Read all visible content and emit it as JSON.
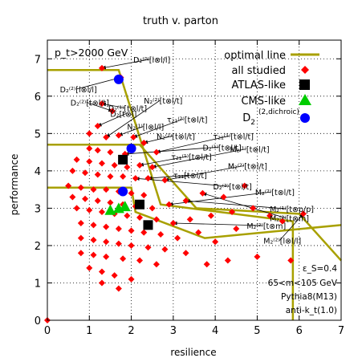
{
  "chart_data": {
    "type": "scatter",
    "title": "truth v. parton",
    "xlabel": "resilience",
    "ylabel": "performance",
    "xlim": [
      0,
      7
    ],
    "ylim": [
      0,
      7.5
    ],
    "xticks": [
      "0",
      "1",
      "2",
      "3",
      "4",
      "5",
      "6",
      "7"
    ],
    "yticks": [
      "0",
      "1",
      "2",
      "3",
      "4",
      "5",
      "6",
      "7"
    ],
    "grid": true,
    "legend_position": "top-right",
    "pt_label": "p_t>2000 GeV",
    "info_lines": [
      "ε_S=0.4",
      "65<m<105 GeV",
      "Pythia8(M13)",
      "anti-k_t(1.0)"
    ],
    "colors": {
      "optimal": "#a8a000",
      "all": "#ff0000",
      "atlas": "#000000",
      "cms": "#00cc00",
      "d2": "#0000ff"
    },
    "series": [
      {
        "name": "all studied",
        "marker": "diamond",
        "points": [
          [
            0,
            0
          ],
          [
            1.3,
            6.75
          ],
          [
            1.75,
            6.5
          ],
          [
            1.3,
            5.8
          ],
          [
            1.55,
            5.6
          ],
          [
            1.2,
            5.2
          ],
          [
            1.0,
            5.0
          ],
          [
            1.4,
            4.9
          ],
          [
            1.7,
            4.95
          ],
          [
            2.05,
            4.9
          ],
          [
            2.3,
            4.75
          ],
          [
            1.0,
            4.6
          ],
          [
            1.2,
            4.55
          ],
          [
            1.5,
            4.5
          ],
          [
            1.85,
            4.45
          ],
          [
            2.6,
            4.5
          ],
          [
            0.7,
            4.3
          ],
          [
            1.0,
            4.25
          ],
          [
            1.3,
            4.2
          ],
          [
            1.6,
            4.15
          ],
          [
            1.9,
            4.1
          ],
          [
            2.2,
            4.15
          ],
          [
            2.5,
            4.1
          ],
          [
            0.6,
            4.0
          ],
          [
            0.9,
            3.95
          ],
          [
            1.2,
            3.9
          ],
          [
            1.5,
            3.85
          ],
          [
            1.8,
            3.85
          ],
          [
            2.1,
            3.8
          ],
          [
            2.4,
            3.8
          ],
          [
            2.8,
            3.75
          ],
          [
            0.5,
            3.6
          ],
          [
            0.8,
            3.55
          ],
          [
            1.1,
            3.5
          ],
          [
            1.4,
            3.5
          ],
          [
            1.7,
            3.45
          ],
          [
            2.0,
            3.4
          ],
          [
            2.3,
            3.35
          ],
          [
            0.6,
            3.3
          ],
          [
            0.9,
            3.25
          ],
          [
            1.2,
            3.2
          ],
          [
            1.5,
            3.15
          ],
          [
            1.8,
            3.1
          ],
          [
            2.1,
            3.05
          ],
          [
            2.5,
            3.0
          ],
          [
            2.9,
            3.1
          ],
          [
            3.3,
            3.2
          ],
          [
            3.7,
            3.4
          ],
          [
            4.2,
            3.3
          ],
          [
            4.7,
            3.6
          ],
          [
            0.7,
            3.0
          ],
          [
            1.0,
            2.95
          ],
          [
            1.3,
            2.9
          ],
          [
            1.6,
            2.85
          ],
          [
            1.9,
            2.8
          ],
          [
            2.2,
            2.75
          ],
          [
            2.6,
            2.7
          ],
          [
            3.0,
            2.6
          ],
          [
            3.4,
            2.7
          ],
          [
            3.9,
            2.8
          ],
          [
            4.4,
            2.9
          ],
          [
            4.9,
            3.0
          ],
          [
            5.3,
            2.8
          ],
          [
            5.6,
            2.65
          ],
          [
            6.1,
            2.85
          ],
          [
            0.8,
            2.6
          ],
          [
            1.1,
            2.55
          ],
          [
            1.4,
            2.5
          ],
          [
            1.7,
            2.45
          ],
          [
            2.0,
            2.4
          ],
          [
            2.3,
            2.35
          ],
          [
            2.7,
            2.3
          ],
          [
            3.1,
            2.2
          ],
          [
            3.6,
            2.35
          ],
          [
            4.0,
            2.1
          ],
          [
            4.5,
            2.45
          ],
          [
            0.8,
            2.2
          ],
          [
            1.1,
            2.15
          ],
          [
            1.4,
            2.1
          ],
          [
            1.7,
            2.05
          ],
          [
            2.0,
            2.0
          ],
          [
            2.4,
            1.95
          ],
          [
            2.8,
            1.9
          ],
          [
            3.3,
            1.8
          ],
          [
            0.8,
            1.8
          ],
          [
            1.1,
            1.75
          ],
          [
            1.4,
            1.7
          ],
          [
            1.8,
            1.65
          ],
          [
            2.2,
            1.6
          ],
          [
            2.6,
            1.5
          ],
          [
            1.0,
            1.4
          ],
          [
            1.3,
            1.3
          ],
          [
            1.6,
            1.2
          ],
          [
            2.0,
            1.1
          ],
          [
            1.3,
            1.0
          ],
          [
            1.7,
            0.85
          ],
          [
            3.8,
            1.5
          ],
          [
            4.3,
            1.6
          ],
          [
            5.0,
            1.7
          ],
          [
            5.8,
            1.6
          ]
        ]
      },
      {
        "name": "ATLAS-like",
        "marker": "square",
        "points": [
          [
            1.8,
            4.3
          ],
          [
            2.2,
            3.1
          ],
          [
            2.4,
            2.55
          ]
        ]
      },
      {
        "name": "CMS-like",
        "marker": "triangle",
        "points": [
          [
            1.5,
            2.95
          ],
          [
            1.7,
            3.0
          ],
          [
            1.85,
            3.05
          ]
        ]
      },
      {
        "name": "D_2^(2,dichroic)",
        "marker": "circle",
        "points": [
          [
            1.7,
            6.45
          ],
          [
            2.0,
            4.6
          ],
          [
            1.8,
            3.45
          ]
        ]
      }
    ],
    "optimal_lines": [
      {
        "name": "optimal line",
        "points": [
          [
            0,
            6.7
          ],
          [
            1.7,
            6.7
          ],
          [
            2.7,
            3.1
          ],
          [
            5.85,
            2.65
          ],
          [
            5.85,
            0
          ]
        ]
      },
      {
        "name": "optimal line",
        "points": [
          [
            0,
            4.7
          ],
          [
            2.2,
            4.7
          ],
          [
            3.55,
            3.0
          ],
          [
            6.0,
            2.85
          ],
          [
            7,
            1.6
          ]
        ]
      },
      {
        "name": "optimal line",
        "points": [
          [
            0,
            3.55
          ],
          [
            2.0,
            3.55
          ],
          [
            2.1,
            2.9
          ],
          [
            3.75,
            2.2
          ],
          [
            7,
            2.55
          ]
        ]
      }
    ],
    "annotations": [
      {
        "text": "D₂⁽²⁾[l⊗l/l]",
        "at": [
          2.05,
          6.9
        ],
        "tip": [
          1.3,
          6.75
        ]
      },
      {
        "text": "D₂⁽²⁾[l⊗l/l]",
        "at": [
          0.3,
          6.1
        ],
        "tip": [
          1.75,
          6.5
        ]
      },
      {
        "text": "D₂⁽²⁾[t⊗l/t]",
        "at": [
          0.55,
          5.75
        ],
        "tip": [
          1.55,
          5.6
        ]
      },
      {
        "text": "D₂⁽¹⁾[t⊗l/t]",
        "at": [
          1.45,
          5.6
        ],
        "tip": [
          1.3,
          5.8
        ]
      },
      {
        "text": "D₂[t⊗l]",
        "at": [
          1.5,
          5.45
        ],
        "tip": [
          1.2,
          5.2
        ]
      },
      {
        "text": "N₂⁽²⁾[t⊗l/t]",
        "at": [
          2.3,
          5.8
        ],
        "tip": [
          1.4,
          4.9
        ]
      },
      {
        "text": "N₂⁽¹⁾[l⊗l/l]",
        "at": [
          1.9,
          5.1
        ],
        "tip": [
          1.7,
          4.95
        ]
      },
      {
        "text": "τ₂₁⁽²⁾[t⊗l/t]",
        "at": [
          2.85,
          5.3
        ],
        "tip": [
          2.05,
          4.9
        ]
      },
      {
        "text": "N₂⁽²⁾[t⊗l/t]",
        "at": [
          2.6,
          4.85
        ],
        "tip": [
          2.3,
          4.75
        ]
      },
      {
        "text": "τ₂₁⁽¹⁾[t⊗l/t]",
        "at": [
          3.95,
          4.85
        ],
        "tip": [
          2.6,
          4.5
        ]
      },
      {
        "text": "D₂⁽¹⁾[t⊗l/t]",
        "at": [
          3.7,
          4.55
        ],
        "tip": [
          1.85,
          4.45
        ]
      },
      {
        "text": "τ₂₁⁽¹⁾[t⊗l/t]",
        "at": [
          2.95,
          4.3
        ],
        "tip": [
          2.2,
          4.15
        ]
      },
      {
        "text": "M₂⁽¹⁾[t⊗l/t]",
        "at": [
          4.35,
          4.5
        ],
        "tip": [
          2.5,
          4.1
        ]
      },
      {
        "text": "M₂⁽²⁾[t⊗l/t]",
        "at": [
          4.3,
          4.05
        ],
        "tip": [
          2.8,
          3.75
        ]
      },
      {
        "text": "τ₂₁[t⊗l/t]",
        "at": [
          3.0,
          3.8
        ],
        "tip": [
          2.4,
          3.8
        ]
      },
      {
        "text": "D₂⁽²⁾[t⊗l/t]",
        "at": [
          3.95,
          3.5
        ],
        "tip": [
          2.1,
          3.8
        ]
      },
      {
        "text": "M₂⁽²⁾[t⊗l/t]",
        "at": [
          4.95,
          3.35
        ],
        "tip": [
          2.9,
          3.1
        ]
      },
      {
        "text": "M₂⁽¹⁾[t⊗p/p]",
        "at": [
          5.3,
          2.9
        ],
        "tip": [
          3.3,
          3.2
        ]
      },
      {
        "text": "M₂⁽²⁾[t⊗m]",
        "at": [
          5.3,
          2.65
        ],
        "tip": [
          3.7,
          3.4
        ]
      },
      {
        "text": "M₂⁽²⁾[t⊗m]",
        "at": [
          4.75,
          2.45
        ],
        "tip": [
          3.0,
          2.6
        ]
      },
      {
        "text": "M₂⁽²⁾[l⊗l/l]",
        "at": [
          5.15,
          2.05
        ],
        "tip": [
          6.1,
          2.85
        ]
      }
    ]
  }
}
